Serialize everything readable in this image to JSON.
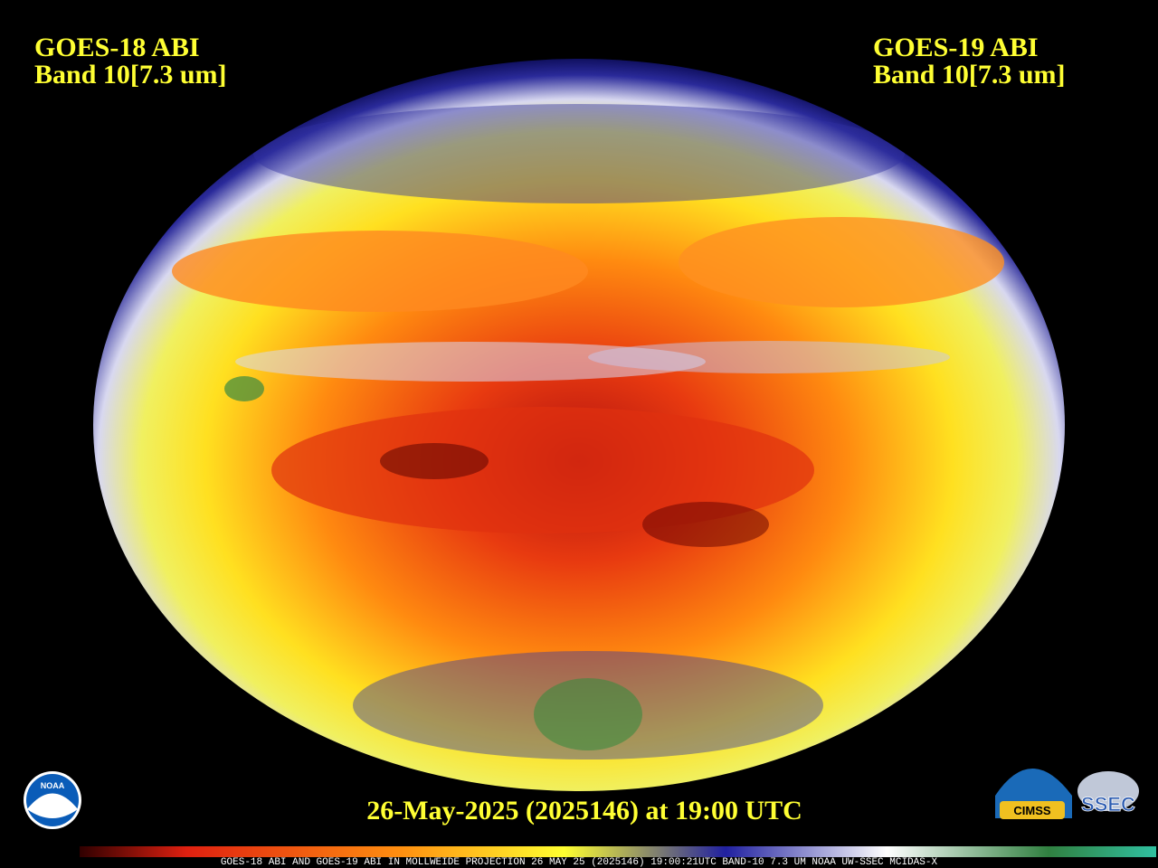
{
  "left_label": {
    "title": "GOES-18 ABI",
    "band": "Band 10[7.3 um]"
  },
  "right_label": {
    "title": "GOES-19 ABI",
    "band": "Band 10[7.3 um]"
  },
  "timestamp": "26-May-2025 (2025146) at 19:00 UTC",
  "colorbar_caption": "GOES-18 ABI AND GOES-19 ABI IN MOLLWEIDE PROJECTION 26 MAY 25 (2025146) 19:00:21UTC BAND-10 7.3 UM NOAA UW-SSEC MCIDAS-X",
  "logos": {
    "noaa": "NOAA",
    "cimss": "CIMSS",
    "ssec": "SSEC"
  }
}
